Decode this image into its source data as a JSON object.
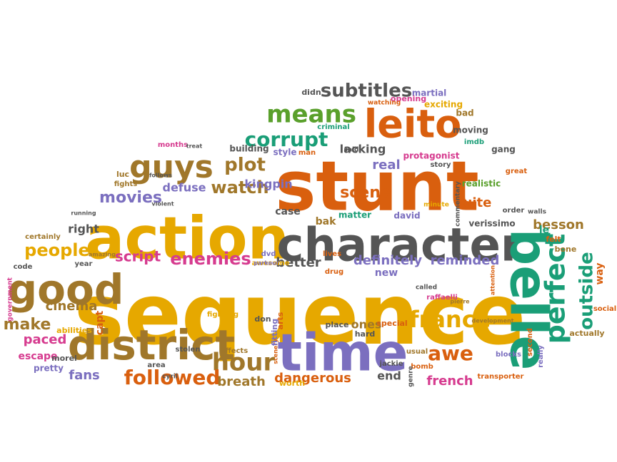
{
  "palette": {
    "orange": "#d95f0e",
    "gold": "#e6a800",
    "grey": "#555555",
    "purple": "#7b6fbf",
    "teal": "#1a9e77",
    "brown": "#a0772a",
    "magenta": "#d63b8f",
    "green": "#5aa02c",
    "red": "#d7191c"
  },
  "words": [
    {
      "text": "sequence",
      "color": "gold"
    },
    {
      "text": "stunt",
      "color": "orange"
    },
    {
      "text": "action",
      "color": "gold"
    },
    {
      "text": "character",
      "color": "grey"
    },
    {
      "text": "time",
      "color": "purple"
    },
    {
      "text": "belle",
      "color": "teal"
    },
    {
      "text": "district",
      "color": "brown"
    },
    {
      "text": "good",
      "color": "brown"
    },
    {
      "text": "leito",
      "color": "orange"
    },
    {
      "text": "guys",
      "color": "brown"
    },
    {
      "text": "means",
      "color": "green"
    },
    {
      "text": "perfect",
      "color": "teal"
    },
    {
      "text": "france",
      "color": "gold"
    },
    {
      "text": "hour",
      "color": "brown"
    },
    {
      "text": "followed",
      "color": "orange"
    },
    {
      "text": "corrupt",
      "color": "teal"
    },
    {
      "text": "subtitles",
      "color": "grey"
    },
    {
      "text": "outside",
      "color": "teal"
    },
    {
      "text": "awe",
      "color": "orange"
    },
    {
      "text": "movies",
      "color": "purple"
    },
    {
      "text": "watch",
      "color": "brown"
    },
    {
      "text": "plot",
      "color": "brown"
    },
    {
      "text": "enemies",
      "color": "magenta"
    },
    {
      "text": "people",
      "color": "gold"
    },
    {
      "text": "script",
      "color": "magenta"
    },
    {
      "text": "scene",
      "color": "orange"
    },
    {
      "text": "make",
      "color": "brown"
    },
    {
      "text": "paced",
      "color": "magenta"
    },
    {
      "text": "cinema",
      "color": "brown"
    },
    {
      "text": "dangerous",
      "color": "orange"
    },
    {
      "text": "breath",
      "color": "brown"
    },
    {
      "text": "fans",
      "color": "purple"
    },
    {
      "text": "definitely",
      "color": "purple"
    },
    {
      "text": "reminded",
      "color": "purple"
    },
    {
      "text": "french",
      "color": "magenta"
    },
    {
      "text": "better",
      "color": "grey"
    },
    {
      "text": "real",
      "color": "purple"
    },
    {
      "text": "lacking",
      "color": "grey"
    },
    {
      "text": "quite",
      "color": "orange"
    },
    {
      "text": "kingpin",
      "color": "purple"
    },
    {
      "text": "defuse",
      "color": "purple"
    },
    {
      "text": "end",
      "color": "grey"
    },
    {
      "text": "ones",
      "color": "brown"
    },
    {
      "text": "new",
      "color": "purple"
    },
    {
      "text": "besson",
      "color": "brown"
    },
    {
      "text": "right",
      "color": "grey"
    },
    {
      "text": "case",
      "color": "grey"
    },
    {
      "text": "bak",
      "color": "brown"
    },
    {
      "text": "matter",
      "color": "teal"
    },
    {
      "text": "david",
      "color": "purple"
    },
    {
      "text": "verissimo",
      "color": "grey"
    },
    {
      "text": "realistic",
      "color": "green"
    },
    {
      "text": "protagonist",
      "color": "magenta"
    },
    {
      "text": "building",
      "color": "grey"
    },
    {
      "text": "style",
      "color": "purple"
    },
    {
      "text": "man",
      "color": "orange"
    },
    {
      "text": "moving",
      "color": "grey"
    },
    {
      "text": "exciting",
      "color": "gold"
    },
    {
      "text": "martial",
      "color": "purple"
    },
    {
      "text": "opening",
      "color": "magenta"
    },
    {
      "text": "didn",
      "color": "grey"
    },
    {
      "text": "criminal",
      "color": "teal"
    },
    {
      "text": "bad",
      "color": "brown"
    },
    {
      "text": "gang",
      "color": "grey"
    },
    {
      "text": "imdb",
      "color": "teal"
    },
    {
      "text": "story",
      "color": "grey"
    },
    {
      "text": "great",
      "color": "orange"
    },
    {
      "text": "luc",
      "color": "brown"
    },
    {
      "text": "fights",
      "color": "brown"
    },
    {
      "text": "months",
      "color": "magenta"
    },
    {
      "text": "treat",
      "color": "grey"
    },
    {
      "text": "follows",
      "color": "grey"
    },
    {
      "text": "certainly",
      "color": "brown"
    },
    {
      "text": "capt",
      "color": "orange"
    },
    {
      "text": "abilities",
      "color": "gold"
    },
    {
      "text": "escape",
      "color": "magenta"
    },
    {
      "text": "pretty",
      "color": "purple"
    },
    {
      "text": "morel",
      "color": "grey"
    },
    {
      "text": "year",
      "color": "grey"
    },
    {
      "text": "code",
      "color": "grey"
    },
    {
      "text": "government",
      "color": "magenta"
    },
    {
      "text": "amazing",
      "color": "brown"
    },
    {
      "text": "stolen",
      "color": "grey"
    },
    {
      "text": "area",
      "color": "grey"
    },
    {
      "text": "fighting",
      "color": "gold"
    },
    {
      "text": "don",
      "color": "grey"
    },
    {
      "text": "arts",
      "color": "orange"
    },
    {
      "text": "place",
      "color": "grey"
    },
    {
      "text": "special",
      "color": "orange"
    },
    {
      "text": "hard",
      "color": "grey"
    },
    {
      "text": "jackie",
      "color": "grey"
    },
    {
      "text": "worth",
      "color": "gold"
    },
    {
      "text": "raffaelli",
      "color": "magenta"
    },
    {
      "text": "transporter",
      "color": "orange"
    },
    {
      "text": "blocks",
      "color": "purple"
    },
    {
      "text": "actually",
      "color": "brown"
    },
    {
      "text": "social",
      "color": "orange"
    },
    {
      "text": "way",
      "color": "orange"
    },
    {
      "text": "bone",
      "color": "brown"
    },
    {
      "text": "felt",
      "color": "orange"
    },
    {
      "text": "le",
      "color": "teal"
    },
    {
      "text": "walls",
      "color": "grey"
    },
    {
      "text": "order",
      "color": "grey"
    },
    {
      "text": "dvd",
      "color": "purple"
    },
    {
      "text": "awesome",
      "color": "gold"
    },
    {
      "text": "lives",
      "color": "orange"
    },
    {
      "text": "drug",
      "color": "orange"
    },
    {
      "text": "usual",
      "color": "brown"
    },
    {
      "text": "called",
      "color": "grey"
    },
    {
      "text": "second",
      "color": "orange"
    },
    {
      "text": "development",
      "color": "brown"
    },
    {
      "text": "cyril",
      "color": "grey"
    },
    {
      "text": "bomb",
      "color": "orange"
    },
    {
      "text": "genre",
      "color": "grey"
    },
    {
      "text": "parkour",
      "color": "purple"
    },
    {
      "text": "running",
      "color": "grey"
    },
    {
      "text": "violent",
      "color": "grey"
    },
    {
      "text": "really",
      "color": "purple"
    },
    {
      "text": "effects",
      "color": "brown"
    },
    {
      "text": "scenery",
      "color": "orange"
    },
    {
      "text": "fitting",
      "color": "purple"
    },
    {
      "text": "attention",
      "color": "orange"
    },
    {
      "text": "pierre",
      "color": "brown"
    },
    {
      "text": "commentary",
      "color": "grey"
    },
    {
      "text": "watching",
      "color": "orange"
    },
    {
      "text": "minute",
      "color": "gold"
    },
    {
      "text": "said",
      "color": "grey"
    }
  ]
}
